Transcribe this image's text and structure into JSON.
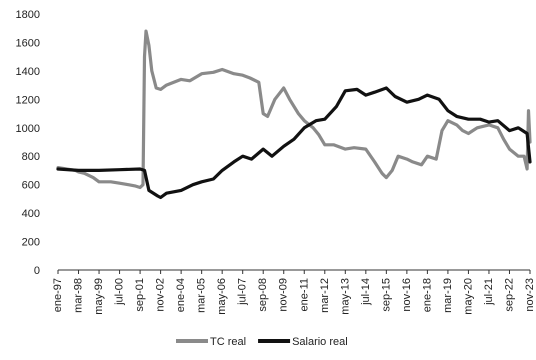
{
  "chart_data": {
    "type": "line",
    "title": "",
    "xlabel": "",
    "ylabel": "",
    "ylim": [
      0,
      1800
    ],
    "yticks": [
      0,
      200,
      400,
      600,
      800,
      1000,
      1200,
      1400,
      1600,
      1800
    ],
    "grid": false,
    "legend_position": "bottom",
    "x_tick_labels": [
      "ene-97",
      "mar-98",
      "may-99",
      "jul-00",
      "sep-01",
      "nov-02",
      "ene-04",
      "mar-05",
      "may-06",
      "jul-07",
      "sep-08",
      "nov-09",
      "ene-11",
      "mar-12",
      "may-13",
      "jul-14",
      "sep-15",
      "nov-16",
      "ene-18",
      "mar-19",
      "may-20",
      "jul-21",
      "sep-22",
      "nov-23"
    ],
    "series": [
      {
        "name": "TC real",
        "color": "#8a8a8a",
        "points": [
          [
            "ene-97",
            720
          ],
          [
            "ene-98",
            700
          ],
          [
            "mar-98",
            690
          ],
          [
            "jul-98",
            680
          ],
          [
            "ene-99",
            650
          ],
          [
            "may-99",
            620
          ],
          [
            "ene-00",
            620
          ],
          [
            "jul-00",
            610
          ],
          [
            "ene-01",
            600
          ],
          [
            "jun-01",
            590
          ],
          [
            "sep-01",
            580
          ],
          [
            "nov-01",
            600
          ],
          [
            "dic-01",
            1500
          ],
          [
            "ene-02",
            1680
          ],
          [
            "mar-02",
            1580
          ],
          [
            "may-02",
            1400
          ],
          [
            "ago-02",
            1280
          ],
          [
            "nov-02",
            1270
          ],
          [
            "mar-03",
            1300
          ],
          [
            "ene-04",
            1340
          ],
          [
            "jul-04",
            1330
          ],
          [
            "mar-05",
            1380
          ],
          [
            "nov-05",
            1390
          ],
          [
            "may-06",
            1410
          ],
          [
            "ene-07",
            1380
          ],
          [
            "jul-07",
            1370
          ],
          [
            "dic-07",
            1350
          ],
          [
            "jun-08",
            1320
          ],
          [
            "sep-08",
            1100
          ],
          [
            "dic-08",
            1080
          ],
          [
            "may-09",
            1200
          ],
          [
            "nov-09",
            1280
          ],
          [
            "mar-10",
            1200
          ],
          [
            "sep-10",
            1100
          ],
          [
            "ene-11",
            1050
          ],
          [
            "jul-11",
            1000
          ],
          [
            "nov-11",
            950
          ],
          [
            "mar-12",
            880
          ],
          [
            "sep-12",
            880
          ],
          [
            "may-13",
            850
          ],
          [
            "nov-13",
            860
          ],
          [
            "jul-14",
            850
          ],
          [
            "ene-15",
            760
          ],
          [
            "jun-15",
            680
          ],
          [
            "sep-15",
            650
          ],
          [
            "ene-16",
            700
          ],
          [
            "may-16",
            800
          ],
          [
            "nov-16",
            780
          ],
          [
            "mar-17",
            760
          ],
          [
            "sep-17",
            740
          ],
          [
            "ene-18",
            800
          ],
          [
            "jul-18",
            780
          ],
          [
            "nov-18",
            980
          ],
          [
            "mar-19",
            1050
          ],
          [
            "sep-19",
            1020
          ],
          [
            "ene-20",
            980
          ],
          [
            "may-20",
            960
          ],
          [
            "nov-20",
            1000
          ],
          [
            "jul-21",
            1020
          ],
          [
            "ene-22",
            1000
          ],
          [
            "may-22",
            920
          ],
          [
            "sep-22",
            850
          ],
          [
            "mar-23",
            800
          ],
          [
            "jul-23",
            800
          ],
          [
            "sep-23",
            710
          ],
          [
            "oct-23",
            1120
          ],
          [
            "nov-23",
            900
          ]
        ]
      },
      {
        "name": "Salario real",
        "color": "#111111",
        "points": [
          [
            "ene-97",
            710
          ],
          [
            "mar-98",
            700
          ],
          [
            "may-99",
            700
          ],
          [
            "jul-00",
            705
          ],
          [
            "sep-01",
            710
          ],
          [
            "dic-01",
            700
          ],
          [
            "mar-02",
            560
          ],
          [
            "sep-02",
            520
          ],
          [
            "nov-02",
            510
          ],
          [
            "mar-03",
            540
          ],
          [
            "ene-04",
            560
          ],
          [
            "sep-04",
            600
          ],
          [
            "mar-05",
            620
          ],
          [
            "nov-05",
            640
          ],
          [
            "may-06",
            700
          ],
          [
            "ene-07",
            760
          ],
          [
            "jul-07",
            800
          ],
          [
            "jan-08",
            780
          ],
          [
            "sep-08",
            850
          ],
          [
            "mar-09",
            800
          ],
          [
            "nov-09",
            870
          ],
          [
            "jun-10",
            920
          ],
          [
            "ene-11",
            1000
          ],
          [
            "sep-11",
            1050
          ],
          [
            "mar-12",
            1060
          ],
          [
            "nov-12",
            1150
          ],
          [
            "may-13",
            1260
          ],
          [
            "ene-14",
            1270
          ],
          [
            "jul-14",
            1230
          ],
          [
            "ene-15",
            1250
          ],
          [
            "sep-15",
            1280
          ],
          [
            "mar-16",
            1220
          ],
          [
            "nov-16",
            1180
          ],
          [
            "jul-17",
            1200
          ],
          [
            "ene-18",
            1230
          ],
          [
            "sep-18",
            1200
          ],
          [
            "mar-19",
            1120
          ],
          [
            "sep-19",
            1080
          ],
          [
            "may-20",
            1060
          ],
          [
            "jan-21",
            1060
          ],
          [
            "jul-21",
            1040
          ],
          [
            "ene-22",
            1050
          ],
          [
            "sep-22",
            980
          ],
          [
            "mar-23",
            1000
          ],
          [
            "sep-23",
            960
          ],
          [
            "nov-23",
            760
          ]
        ]
      }
    ]
  }
}
